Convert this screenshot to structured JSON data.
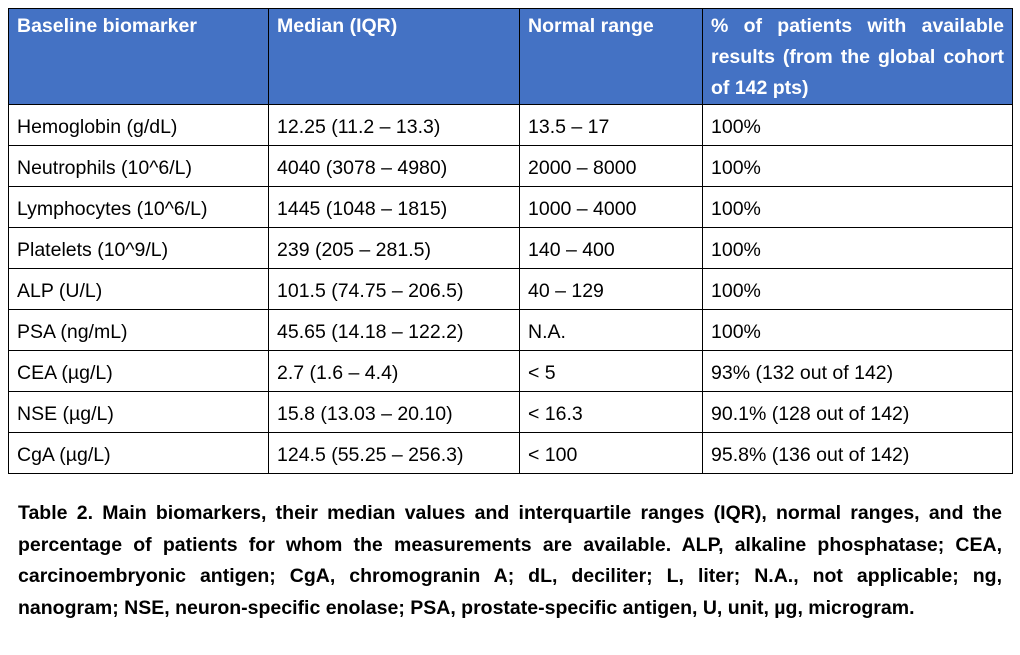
{
  "table": {
    "headers": [
      "Baseline biomarker",
      "Median (IQR)",
      "Normal range",
      "% of patients with available results (from the global cohort of 142 pts)"
    ],
    "rows": [
      [
        "Hemoglobin (g/dL)",
        "12.25 (11.2 – 13.3)",
        "13.5 – 17",
        "100%"
      ],
      [
        "Neutrophils (10^6/L)",
        "4040 (3078 – 4980)",
        "2000 – 8000",
        "100%"
      ],
      [
        "Lymphocytes (10^6/L)",
        "1445 (1048 – 1815)",
        "1000 – 4000",
        "100%"
      ],
      [
        "Platelets (10^9/L)",
        "239 (205 – 281.5)",
        "140 – 400",
        "100%"
      ],
      [
        "ALP (U/L)",
        "101.5 (74.75 – 206.5)",
        "40 – 129",
        "100%"
      ],
      [
        "PSA (ng/mL)",
        "45.65 (14.18 – 122.2)",
        "N.A.",
        "100%"
      ],
      [
        "CEA (µg/L)",
        "2.7 (1.6 – 4.4)",
        "< 5",
        "93% (132 out of 142)"
      ],
      [
        "NSE (µg/L)",
        "15.8 (13.03 – 20.10)",
        "< 16.3",
        "90.1% (128 out of 142)"
      ],
      [
        "CgA (µg/L)",
        "124.5 (55.25 – 256.3)",
        "< 100",
        "95.8% (136 out of 142)"
      ]
    ]
  },
  "caption": "Table 2. Main biomarkers, their median values and interquartile ranges (IQR), normal ranges, and the percentage of patients for whom the measurements are available. ALP, alkaline phosphatase; CEA, carcinoembryonic antigen; CgA, chromogranin A; dL, deciliter; L, liter; N.A., not applicable; ng, nanogram; NSE, neuron-specific enolase; PSA, prostate-specific antigen, U, unit, µg, microgram.",
  "colors": {
    "header_background": "#4472c4",
    "header_text": "#ffffff",
    "border": "#000000"
  }
}
